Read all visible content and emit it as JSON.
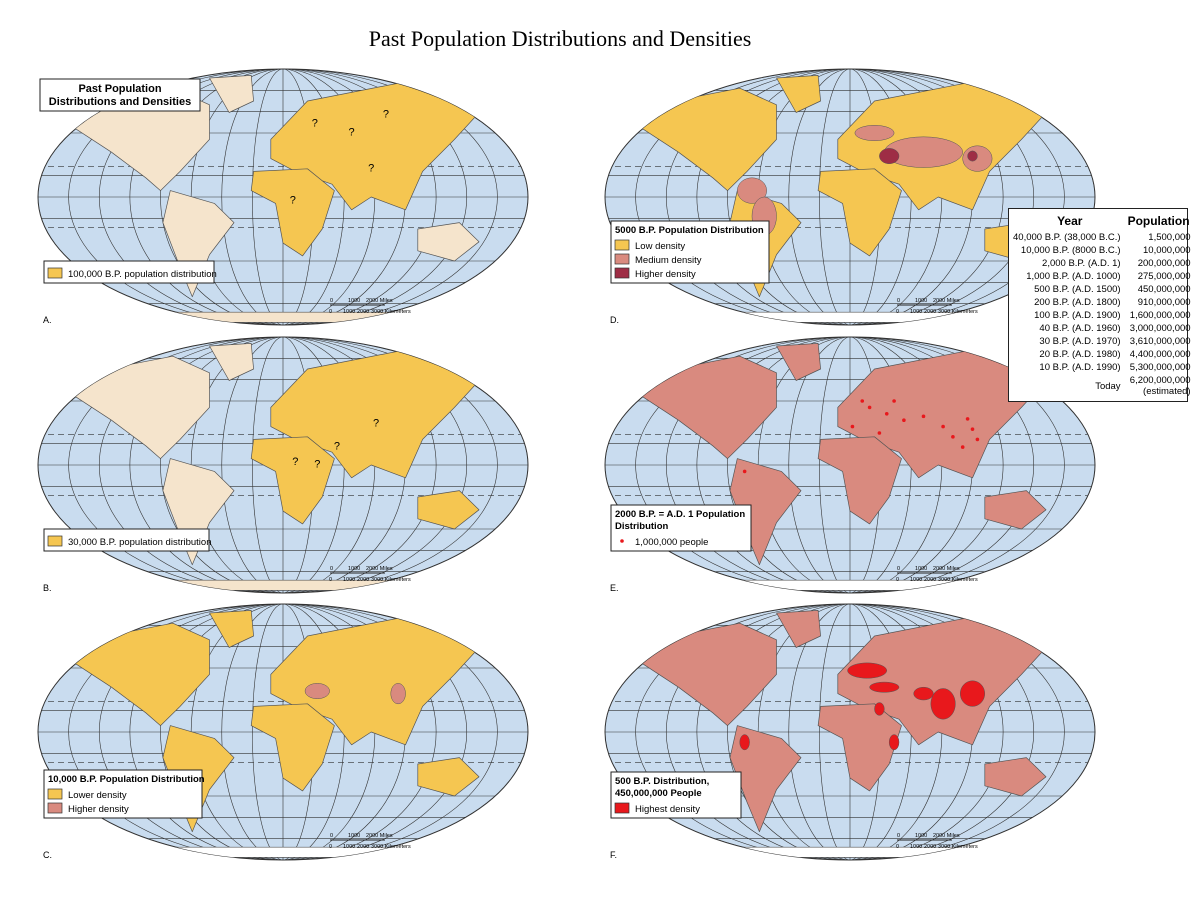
{
  "title": "Past Population Distributions and Densities",
  "scale": {
    "miles": [
      "0",
      "1000",
      "2000 Miles"
    ],
    "km": [
      "0",
      "1000",
      "2000",
      "3000 Kilometers"
    ]
  },
  "maps": [
    {
      "letter": "A.",
      "heading": [
        "Past Population",
        "Distributions and Densities"
      ],
      "legend_items": [
        "100,000 B.P. population distribution"
      ],
      "question_marks": [
        "?",
        "?",
        "?",
        "?",
        "?"
      ]
    },
    {
      "letter": "B.",
      "legend_items": [
        "30,000 B.P. population distribution"
      ],
      "question_marks": [
        "?",
        "?",
        "?",
        "?"
      ]
    },
    {
      "letter": "C.",
      "legend_title": [
        "10,000 B.P. Population Distribution"
      ],
      "legend_items": [
        "Lower density",
        "Higher density"
      ]
    },
    {
      "letter": "D.",
      "legend_title": [
        "5000 B.P. Population Distribution"
      ],
      "legend_items": [
        "Low density",
        "Medium density",
        "Higher density"
      ]
    },
    {
      "letter": "E.",
      "legend_title": [
        "2000 B.P. = A.D. 1 Population",
        "Distribution"
      ],
      "legend_items": [
        "1,000,000 people"
      ]
    },
    {
      "letter": "F.",
      "legend_title": [
        "500 B.P. Distribution,",
        "450,000,000 People"
      ],
      "legend_items": [
        "Highest density"
      ]
    }
  ],
  "table": {
    "header": [
      "Year",
      "Population"
    ],
    "rows": [
      [
        "40,000 B.P. (38,000 B.C.)",
        "1,500,000"
      ],
      [
        "10,000 B.P. (8000 B.C.)",
        "10,000,000"
      ],
      [
        "2,000 B.P. (A.D. 1)",
        "200,000,000"
      ],
      [
        "1,000 B.P. (A.D. 1000)",
        "275,000,000"
      ],
      [
        "500 B.P. (A.D. 1500)",
        "450,000,000"
      ],
      [
        "200 B.P. (A.D. 1800)",
        "910,000,000"
      ],
      [
        "100 B.P. (A.D. 1900)",
        "1,600,000,000"
      ],
      [
        "40 B.P. (A.D. 1960)",
        "3,000,000,000"
      ],
      [
        "30 B.P. (A.D. 1970)",
        "3,610,000,000"
      ],
      [
        "20 B.P. (A.D. 1980)",
        "4,400,000,000"
      ],
      [
        "10 B.P. (A.D. 1990)",
        "5,300,000,000"
      ],
      [
        "Today",
        "6,200,000,000",
        "(estimated)"
      ]
    ]
  }
}
